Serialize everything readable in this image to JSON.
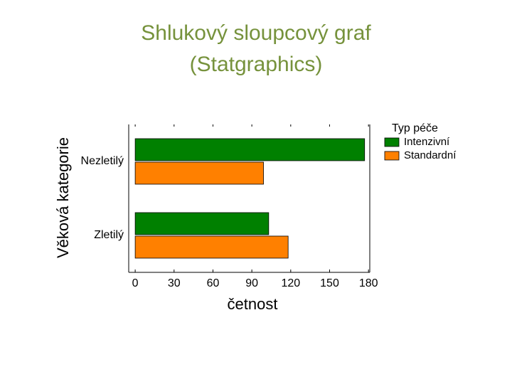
{
  "slide": {
    "title_lines": [
      "Shlukový sloupcový graf",
      "(Statgraphics)"
    ]
  },
  "chart_data": {
    "type": "barh",
    "categories": [
      "Nezletilý",
      "Zletilý"
    ],
    "series": [
      {
        "name": "Intenzivní",
        "color": "#008000",
        "values": [
          177,
          103
        ]
      },
      {
        "name": "Standardní",
        "color": "#ff8000",
        "values": [
          99,
          118
        ]
      }
    ],
    "xlim": [
      -5,
      181
    ],
    "xticks": [
      0,
      30,
      60,
      90,
      120,
      150,
      180
    ],
    "xlabel": "četnost",
    "ylabel": "Věková kategorie",
    "legend_title": "Typ péče",
    "legend": "right"
  }
}
